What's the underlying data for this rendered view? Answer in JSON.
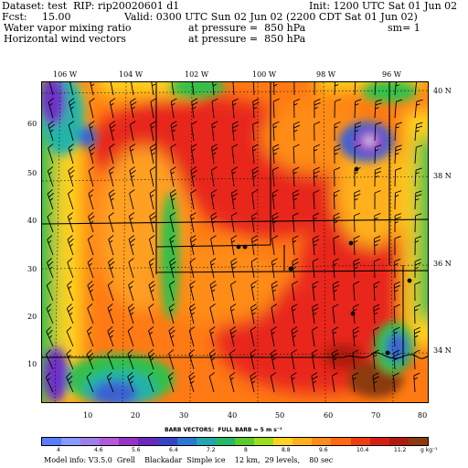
{
  "header": {
    "dataset_line": "Dataset: test  RIP: rip20020601 d1",
    "init_line": "Init: 1200 UTC Sat 01 Jun 02",
    "fcst_label": "Fcst:",
    "fcst_value": "15.00",
    "valid_line": "Valid: 0300 UTC Sun 02 Jun 02 (2200 CDT Sat 01 Jun 02)",
    "field1_name": "Water vapor mixing ratio",
    "field1_level": "at pressure =  850 hPa",
    "field1_extra": "sm= 1",
    "field2_name": "Horizontal wind vectors",
    "field2_level": "at pressure =  850 hPa"
  },
  "map": {
    "top_lon_labels": [
      "106 W",
      "104 W",
      "102 W",
      "100 W",
      "98 W",
      "96 W"
    ],
    "right_lat_labels": [
      "40 N",
      "38 N",
      "36 N",
      "34 N"
    ],
    "left_y_labels": [
      "60",
      "50",
      "40",
      "30",
      "20",
      "10"
    ],
    "bottom_x_labels": [
      "10",
      "20",
      "30",
      "40",
      "50",
      "60",
      "70",
      "80"
    ],
    "projection_grid": "lat/lon dotted lines",
    "fill_colors": {
      "high": "#8b3a0f",
      "wet": "#e8281e",
      "moist": "#ff6a10",
      "mid": "#ffa020",
      "yellow": "#ffd21e",
      "green": "#30c04a",
      "teal": "#21b4a8",
      "blue": "#3a62d2",
      "dryblue": "#6d30c8",
      "dry": "#9a3ec2"
    }
  },
  "barb_legend": "BARB VECTORS:  FULL BARB = 5 m s⁻¹",
  "colorbar": {
    "labels": [
      "4",
      "4.6",
      "5.6",
      "6.4",
      "7.2",
      "8",
      "8.8",
      "9.6",
      "10.4",
      "11.2"
    ],
    "units": "g kg⁻¹",
    "colors": [
      "#5a7cff",
      "#8a98ff",
      "#a07ee8",
      "#b25ad8",
      "#9632c6",
      "#6a28bc",
      "#3a42c8",
      "#2a78d0",
      "#20a8b0",
      "#26b866",
      "#5cca2a",
      "#9edc1e",
      "#ffd21e",
      "#ffb01e",
      "#ff8c18",
      "#ff6a10",
      "#f03c10",
      "#d81e14",
      "#b01a10",
      "#8b3a0f"
    ]
  },
  "footer": "Model info: V3.5.0  Grell    Blackadar  Simple ice    12 km,  29 levels,    80 sec"
}
